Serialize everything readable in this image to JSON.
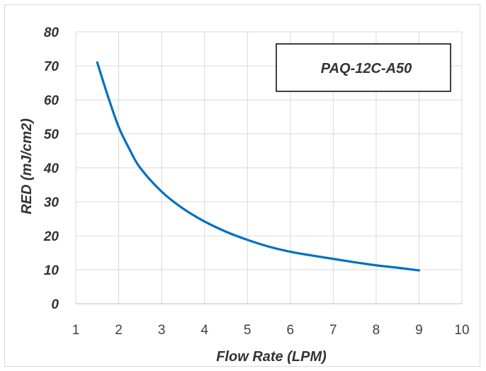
{
  "chart_data": {
    "type": "line",
    "title": "",
    "xlabel": "Flow Rate (LPM)",
    "ylabel": "RED (mJ/cm2)",
    "xlim": [
      1,
      10
    ],
    "ylim": [
      0,
      80
    ],
    "x_ticks": [
      1,
      2,
      3,
      4,
      5,
      6,
      7,
      8,
      9,
      10
    ],
    "y_ticks": [
      0,
      10,
      20,
      30,
      40,
      50,
      60,
      70,
      80
    ],
    "grid": true,
    "legend_box_label": "PAQ-12C-A50",
    "legend_position": "top-right",
    "series_color": "#0070c0",
    "series": [
      {
        "x": [
          1.5,
          1.75,
          2,
          2.25,
          2.5,
          3,
          3.5,
          4,
          4.5,
          5,
          5.5,
          6,
          6.5,
          7,
          7.5,
          8,
          8.5,
          9
        ],
        "y": [
          71,
          61,
          52,
          45.5,
          40,
          33,
          28,
          24.2,
          21.2,
          18.8,
          16.8,
          15.3,
          14.2,
          13.2,
          12.2,
          11.3,
          10.6,
          9.8
        ]
      }
    ]
  }
}
